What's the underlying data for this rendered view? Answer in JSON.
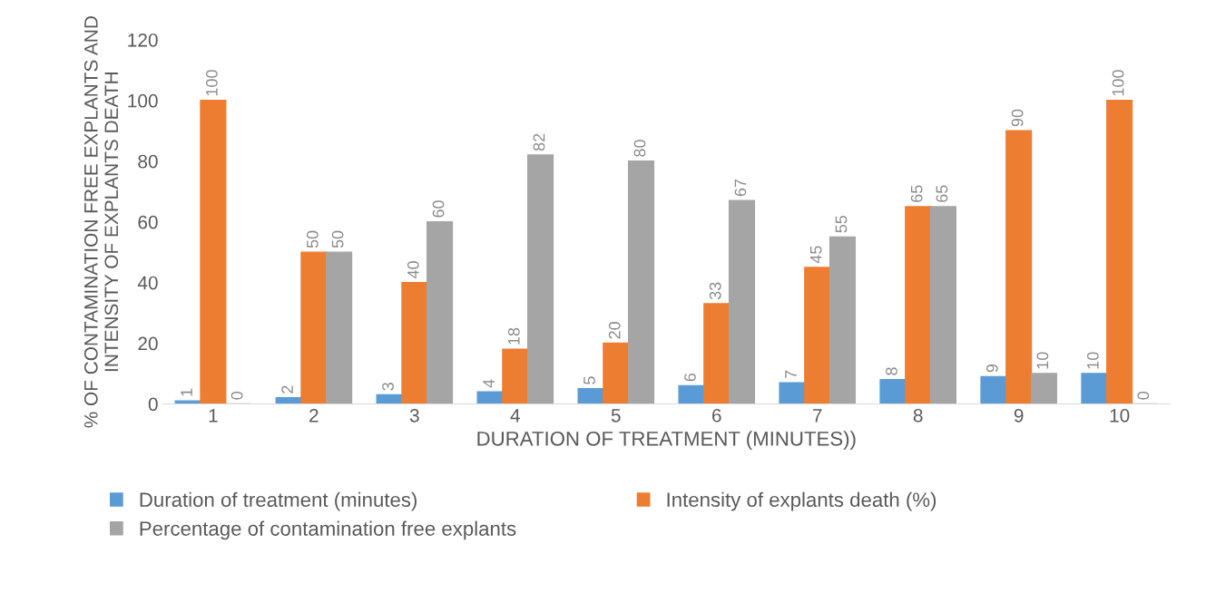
{
  "chart_data": {
    "type": "bar",
    "xlabel": "DURATION OF TREATMENT (MINUTES))",
    "ylabel": "% OF CONTAMINATION FREE EXPLANTS AND\nINTENSITY OF EXPLANTS DEATH",
    "categories": [
      "1",
      "2",
      "3",
      "4",
      "5",
      "6",
      "7",
      "8",
      "9",
      "10"
    ],
    "series": [
      {
        "name": "Duration of treatment (minutes)",
        "color": "#5b9bd5",
        "values": [
          1,
          2,
          3,
          4,
          5,
          6,
          7,
          8,
          9,
          10
        ]
      },
      {
        "name": "Intensity of explants death (%)",
        "color": "#ed7d31",
        "values": [
          100,
          50,
          40,
          18,
          20,
          33,
          45,
          65,
          90,
          100
        ]
      },
      {
        "name": "Percentage of contamination free explants",
        "color": "#a5a5a5",
        "values": [
          0,
          50,
          60,
          82,
          80,
          67,
          55,
          65,
          10,
          0
        ]
      }
    ],
    "ylim": [
      0,
      120
    ],
    "yticks": [
      0,
      20,
      40,
      60,
      80,
      100,
      120
    ],
    "grid": false,
    "legend": "bottom",
    "data_labels": true
  }
}
